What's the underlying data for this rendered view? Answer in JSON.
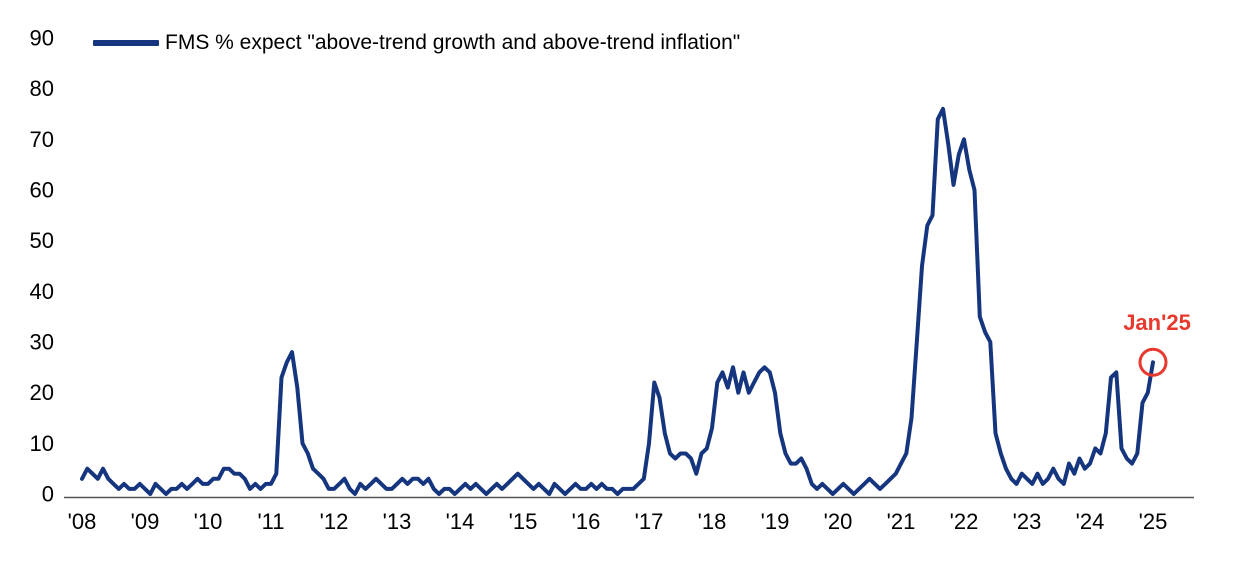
{
  "chart_data": {
    "type": "line",
    "title": "",
    "legend_position": "top-left",
    "grid": false,
    "ylim": [
      0,
      90
    ],
    "yticks": [
      0,
      10,
      20,
      30,
      40,
      50,
      60,
      70,
      80,
      90
    ],
    "categories": [
      "'08",
      "'09",
      "'10",
      "'11",
      "'12",
      "'13",
      "'14",
      "'15",
      "'16",
      "'17",
      "'18",
      "'19",
      "'20",
      "'21",
      "'22",
      "'23",
      "'24",
      "'25"
    ],
    "x_start": "2008-01",
    "x_frequency": "monthly",
    "series": [
      {
        "name": "FMS % expect \"above-trend growth and above-trend inflation\"",
        "color": "#15357e",
        "values": [
          3,
          5,
          4,
          3,
          5,
          3,
          2,
          1,
          2,
          1,
          1,
          2,
          1,
          0,
          2,
          1,
          0,
          1,
          1,
          2,
          1,
          2,
          3,
          2,
          2,
          3,
          3,
          5,
          5,
          4,
          4,
          3,
          1,
          2,
          1,
          2,
          2,
          4,
          23,
          26,
          28,
          21,
          10,
          8,
          5,
          4,
          3,
          1,
          1,
          2,
          3,
          1,
          0,
          2,
          1,
          2,
          3,
          2,
          1,
          1,
          2,
          3,
          2,
          3,
          3,
          2,
          3,
          1,
          0,
          1,
          1,
          0,
          1,
          2,
          1,
          2,
          1,
          0,
          1,
          2,
          1,
          2,
          3,
          4,
          3,
          2,
          1,
          2,
          1,
          0,
          2,
          1,
          0,
          1,
          2,
          1,
          1,
          2,
          1,
          2,
          1,
          1,
          0,
          1,
          1,
          1,
          2,
          3,
          10,
          22,
          19,
          12,
          8,
          7,
          8,
          8,
          7,
          4,
          8,
          9,
          13,
          22,
          24,
          21,
          25,
          20,
          24,
          20,
          22,
          24,
          25,
          24,
          20,
          12,
          8,
          6,
          6,
          7,
          5,
          2,
          1,
          2,
          1,
          0,
          1,
          2,
          1,
          0,
          1,
          2,
          3,
          2,
          1,
          2,
          3,
          4,
          6,
          8,
          15,
          30,
          45,
          53,
          55,
          74,
          76,
          69,
          61,
          67,
          70,
          64,
          60,
          35,
          32,
          30,
          12,
          8,
          5,
          3,
          2,
          4,
          3,
          2,
          4,
          2,
          3,
          5,
          3,
          2,
          6,
          4,
          7,
          5,
          6,
          9,
          8,
          12,
          23,
          24,
          9,
          7,
          6,
          8,
          18,
          20,
          26
        ]
      }
    ],
    "annotation": {
      "label": "Jan'25",
      "x": "2025-01",
      "value": 26,
      "color": "#e8392e"
    }
  },
  "colors": {
    "line": "#15357e",
    "annotation": "#e8392e",
    "axis": "#555555",
    "text": "#000000",
    "background": "#ffffff"
  }
}
